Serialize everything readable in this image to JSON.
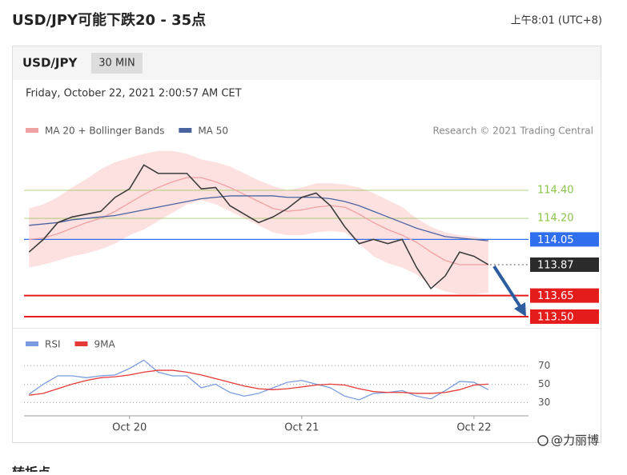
{
  "header": {
    "title": "USD/JPY可能下跌20 - 35点",
    "time": "上午8:01 (UTC+8)"
  },
  "card": {
    "symbol": "USD/JPY",
    "interval": "30 MIN",
    "timestamp": "Friday, October 22, 2021 2:00:57 AM CET"
  },
  "footer": {
    "watermark": "@力丽博",
    "next_heading": "转折点"
  },
  "chart_data": [
    {
      "type": "line",
      "credit": "Research © 2021 Trading Central",
      "x": [
        -14,
        -12,
        -10,
        -8,
        -6,
        -4,
        -2,
        0,
        2,
        4,
        6,
        8,
        10,
        12,
        14,
        16,
        18,
        20,
        22,
        24,
        26,
        28,
        30,
        32,
        34,
        36,
        38,
        40,
        42,
        44,
        46,
        48,
        50
      ],
      "xlim": [
        -14.7,
        55.6
      ],
      "ylim": [
        113.42,
        114.73
      ],
      "price": {
        "color": "#3d3d3d",
        "values": [
          113.96,
          114.05,
          114.17,
          114.21,
          114.23,
          114.25,
          114.35,
          114.41,
          114.58,
          114.52,
          114.52,
          114.52,
          114.41,
          114.42,
          114.29,
          114.23,
          114.17,
          114.21,
          114.27,
          114.35,
          114.38,
          114.29,
          114.14,
          114.02,
          114.05,
          114.02,
          114.05,
          113.85,
          113.7,
          113.79,
          113.96,
          113.93,
          113.87
        ]
      },
      "series": [
        {
          "name": "MA 20 + Bollinger Bands",
          "color": "#f0a0a0",
          "band_color": "#fde0e0",
          "values": [
            114.05,
            114.06,
            114.09,
            114.13,
            114.17,
            114.2,
            114.25,
            114.31,
            114.37,
            114.42,
            114.46,
            114.49,
            114.49,
            114.46,
            114.42,
            114.37,
            114.32,
            114.27,
            114.25,
            114.26,
            114.28,
            114.29,
            114.28,
            114.23,
            114.17,
            114.12,
            114.08,
            114.03,
            113.96,
            113.9,
            113.87,
            113.87,
            113.87
          ],
          "upper": [
            114.27,
            114.3,
            114.35,
            114.42,
            114.48,
            114.55,
            114.6,
            114.63,
            114.66,
            114.68,
            114.68,
            114.66,
            114.62,
            114.6,
            114.57,
            114.52,
            114.47,
            114.43,
            114.4,
            114.42,
            114.45,
            114.45,
            114.44,
            114.42,
            114.38,
            114.33,
            114.28,
            114.2,
            114.14,
            114.1,
            114.08,
            114.07,
            114.05
          ],
          "lower": [
            113.85,
            113.87,
            113.9,
            113.93,
            113.95,
            113.98,
            114.02,
            114.08,
            114.12,
            114.18,
            114.24,
            114.3,
            114.33,
            114.3,
            114.25,
            114.2,
            114.15,
            114.1,
            114.08,
            114.08,
            114.1,
            114.11,
            114.1,
            114.02,
            113.93,
            113.88,
            113.85,
            113.8,
            113.72,
            113.68,
            113.66,
            113.66,
            113.67
          ]
        },
        {
          "name": "MA 50",
          "color": "#4a64a0",
          "values": [
            114.15,
            114.16,
            114.17,
            114.19,
            114.2,
            114.21,
            114.22,
            114.24,
            114.26,
            114.28,
            114.3,
            114.32,
            114.34,
            114.35,
            114.36,
            114.36,
            114.36,
            114.36,
            114.35,
            114.35,
            114.35,
            114.34,
            114.32,
            114.29,
            114.25,
            114.21,
            114.17,
            114.13,
            114.1,
            114.07,
            114.06,
            114.05,
            114.04
          ]
        }
      ],
      "levels": [
        {
          "value": 114.4,
          "label": "114.40",
          "color": "#8bc34a",
          "style": "text",
          "line": "solid"
        },
        {
          "value": 114.2,
          "label": "114.20",
          "color": "#8bc34a",
          "style": "text",
          "line": "solid"
        },
        {
          "value": 114.05,
          "label": "114.05",
          "color": "#2f6fed",
          "style": "box",
          "line": "solid"
        },
        {
          "value": 113.87,
          "label": "113.87",
          "color": "#2b2b2b",
          "style": "box",
          "line": "dotted"
        },
        {
          "value": 113.65,
          "label": "113.65",
          "color": "#e51c1c",
          "style": "box",
          "line": "solid"
        },
        {
          "value": 113.5,
          "label": "113.50",
          "color": "#e51c1c",
          "style": "box",
          "line": "solid"
        }
      ]
    },
    {
      "type": "line",
      "x": [
        -14,
        -12,
        -10,
        -8,
        -6,
        -4,
        -2,
        0,
        2,
        4,
        6,
        8,
        10,
        12,
        14,
        16,
        18,
        20,
        22,
        24,
        26,
        28,
        30,
        32,
        34,
        36,
        38,
        40,
        42,
        44,
        46,
        48,
        50
      ],
      "xlim": [
        -14.7,
        55.6
      ],
      "ylim": [
        20,
        85
      ],
      "xticks": [
        {
          "value": 0,
          "label": "Oct 20"
        },
        {
          "value": 24,
          "label": "Oct 21"
        },
        {
          "value": 48,
          "label": "Oct 22"
        }
      ],
      "yticks": [
        30,
        50,
        70
      ],
      "grid": true,
      "series": [
        {
          "name": "RSI",
          "color": "#7b9be0",
          "values": [
            39,
            50,
            59,
            59,
            57,
            59,
            60,
            67,
            76,
            63,
            59,
            59,
            46,
            50,
            41,
            37,
            40,
            46,
            52,
            54,
            50,
            46,
            37,
            33,
            40,
            41,
            43,
            37,
            34,
            43,
            53,
            52,
            44
          ]
        },
        {
          "name": "9MA",
          "color": "#e53935",
          "values": [
            38,
            40,
            45,
            50,
            54,
            57,
            58,
            60,
            63,
            65,
            65,
            63,
            60,
            56,
            52,
            48,
            45,
            44,
            45,
            47,
            49,
            50,
            49,
            45,
            42,
            41,
            41,
            40,
            40,
            41,
            44,
            49,
            50
          ]
        }
      ]
    }
  ]
}
